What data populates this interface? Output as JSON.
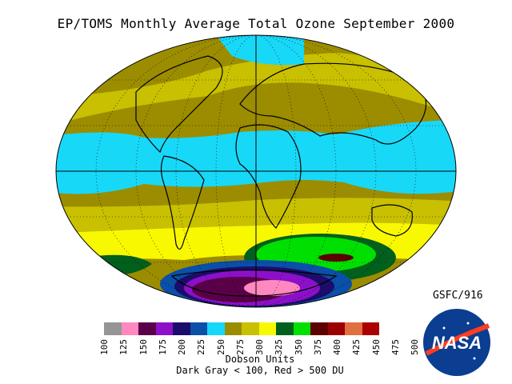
{
  "title": "EP/TOMS Monthly Average Total Ozone September 2000",
  "source_label": "GSFC/916",
  "colorbar": {
    "ticks": [
      "100",
      "125",
      "150",
      "175",
      "200",
      "225",
      "250",
      "275",
      "300",
      "325",
      "350",
      "375",
      "400",
      "425",
      "450",
      "475",
      "500"
    ],
    "colors": [
      "#959595",
      "#ff88c0",
      "#5a0048",
      "#8c10c8",
      "#1c0c6c",
      "#0a4fa8",
      "#18d8f8",
      "#9c8c00",
      "#c8c000",
      "#f8f800",
      "#00601c",
      "#00e000",
      "#5c0000",
      "#9c0000",
      "#e07040",
      "#aa0000"
    ],
    "units_label": "Dobson Units",
    "note": "Dark Gray < 100, Red > 500 DU"
  },
  "logo_text": "NASA"
}
